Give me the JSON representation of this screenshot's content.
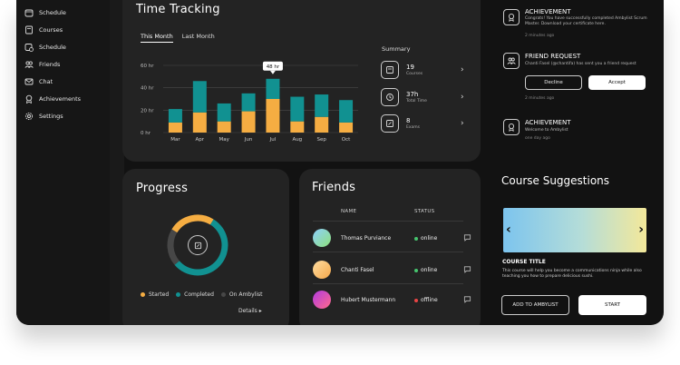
{
  "sidebar": {
    "items": [
      {
        "label": "Schedule",
        "icon": "calendar-icon"
      },
      {
        "label": "Courses",
        "icon": "book-icon"
      },
      {
        "label": "Schedule",
        "icon": "calendar-clock-icon"
      },
      {
        "label": "Friends",
        "icon": "users-icon"
      },
      {
        "label": "Chat",
        "icon": "mail-icon"
      },
      {
        "label": "Achievements",
        "icon": "medal-icon"
      },
      {
        "label": "Settings",
        "icon": "gear-icon"
      }
    ]
  },
  "time_tracking": {
    "title": "Time Tracking",
    "tabs": [
      "This Month",
      "Last Month"
    ],
    "summary": {
      "title": "Summary",
      "rows": [
        {
          "value": "19",
          "label": "Courses",
          "icon": "book-icon"
        },
        {
          "value": "37h",
          "label": "Total Time",
          "icon": "history-icon"
        },
        {
          "value": "8",
          "label": "Exams",
          "icon": "exam-icon"
        }
      ]
    },
    "tooltip": "48 hr"
  },
  "chart_data": {
    "type": "bar",
    "stacked": true,
    "categories": [
      "Mar",
      "Apr",
      "May",
      "Jun",
      "Jul",
      "Aug",
      "Sep",
      "Oct"
    ],
    "series": [
      {
        "color": "#f5ad42",
        "values": [
          9,
          18,
          10,
          19,
          30,
          10,
          14,
          9
        ]
      },
      {
        "color": "#119191",
        "values": [
          12,
          28,
          16,
          16,
          18,
          22,
          20,
          20
        ]
      }
    ],
    "yticks": [
      "0 hr",
      "20 hr",
      "40 hr",
      "60 hr"
    ],
    "ylim": [
      0,
      60
    ],
    "highlight_index": 4,
    "grid": true
  },
  "progress": {
    "title": "Progress",
    "segments": [
      {
        "label": "Started",
        "value": 25,
        "color": "#f5ad42"
      },
      {
        "label": "Completed",
        "value": 55,
        "color": "#119191"
      },
      {
        "label": "On Ambylist",
        "value": 20,
        "color": "#474747"
      }
    ],
    "details": "Details ▸"
  },
  "friends": {
    "title": "Friends",
    "col_name": "NAME",
    "col_status": "STATUS",
    "rows": [
      {
        "name": "Thomas Purviance",
        "status": "online",
        "status_color": "#46c46e",
        "avatar_a": "#8fd0ff",
        "avatar_b": "#8de07a"
      },
      {
        "name": "Chanti Fasel",
        "status": "online",
        "status_color": "#46c46e",
        "avatar_a": "#ffdca0",
        "avatar_b": "#f5a84a"
      },
      {
        "name": "Hubert Mustermann",
        "status": "offline",
        "status_color": "#e84545",
        "avatar_a": "#b23ae0",
        "avatar_b": "#ff6a8a"
      }
    ]
  },
  "notifications": [
    {
      "title": "ACHIEVEMENT",
      "body": "Congrats! You have successfully completed Ambylist Scrum Master. Download your certificate here.",
      "time": "2 minutes ago",
      "icon": "medal-icon"
    },
    {
      "title": "FRIEND REQUEST",
      "body": "Chanti Fasel (@chantifa) has sent you a friend request",
      "time": "2 minutes ago",
      "icon": "users-icon",
      "decline": "Decline",
      "accept": "Accept"
    },
    {
      "title": "ACHIEVEMENT",
      "body": "Welcome to Ambylist",
      "time": "one day ago",
      "icon": "medal-icon"
    }
  ],
  "course_suggestions": {
    "title": "Course Suggestions",
    "course_title": "COURSE TITLE",
    "description": "This course will help you become a communications ninja while also teaching you how to prepare delicious sushi.",
    "add_label": "ADD TO AMBYLIST",
    "start_label": "START"
  }
}
